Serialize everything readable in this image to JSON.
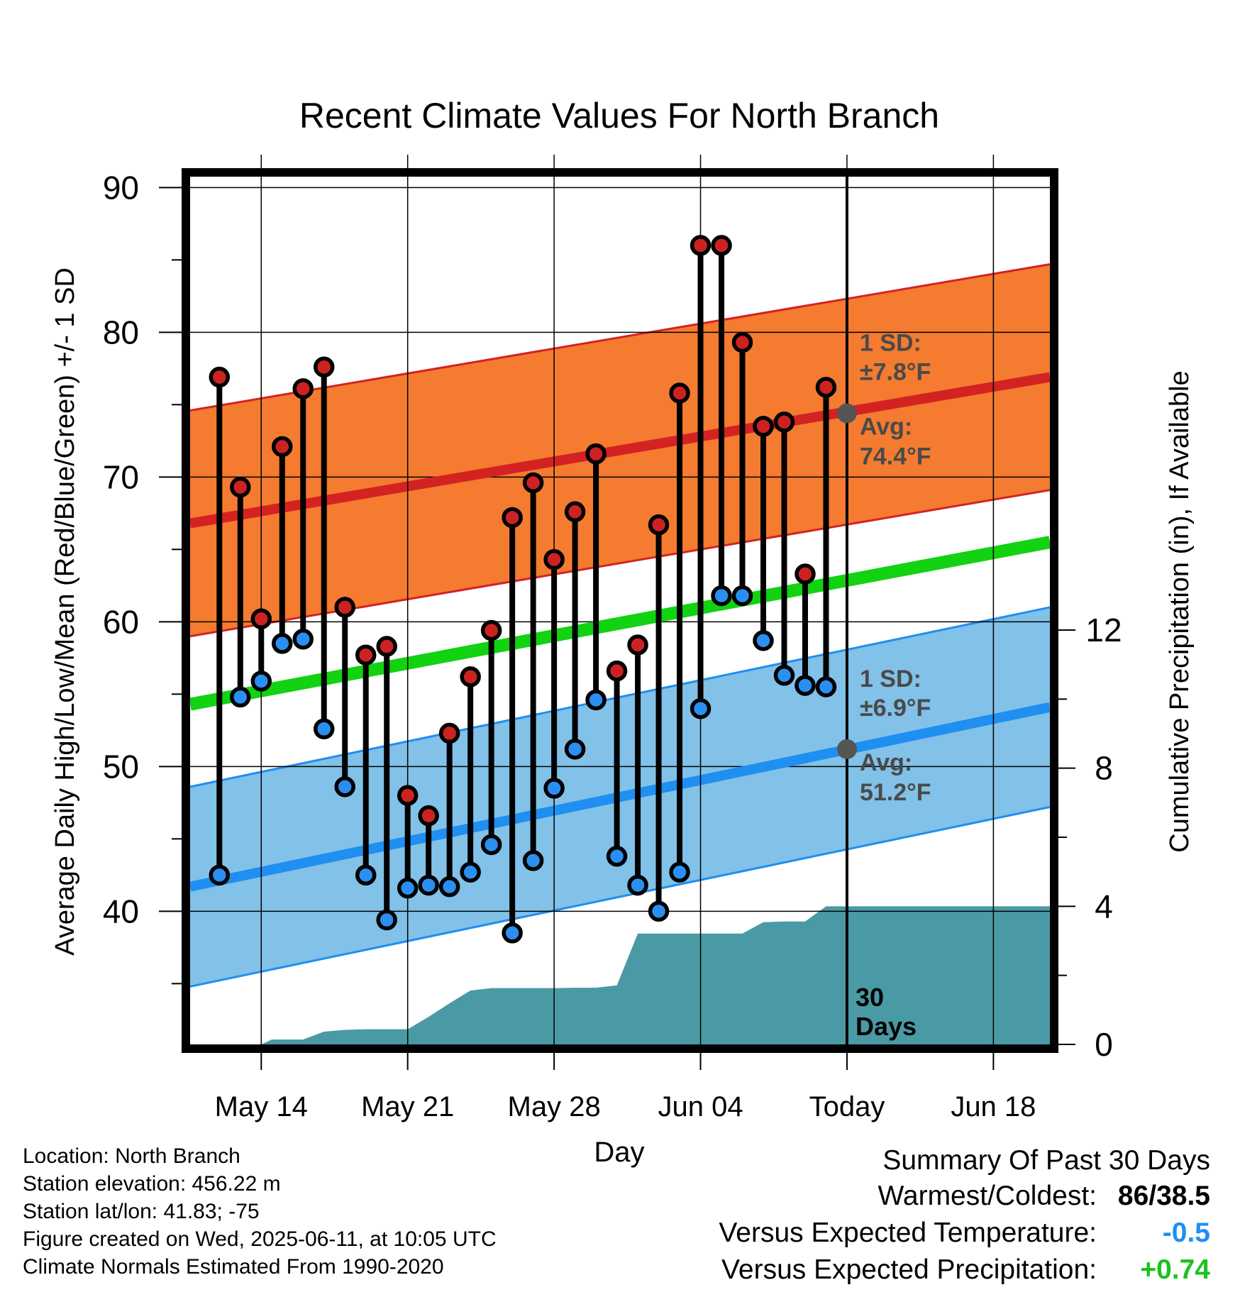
{
  "chart_data": {
    "type": "line",
    "title": "Recent Climate Values For North Branch",
    "xlabel": "Day",
    "ylabel_left": "Average Daily High/Low/Mean (Red/Blue/Green) +/- 1 SD",
    "ylabel_right": "Cumulative Precipitation (in), If Available",
    "x_tick_labels": [
      "May 14",
      "May 21",
      "May 28",
      "Jun 04",
      "Today",
      "Jun 18"
    ],
    "x_tick_days": [
      14,
      21,
      28,
      35,
      42,
      49
    ],
    "x_range_days": [
      10.6,
      51.7
    ],
    "ylim": [
      30.8,
      90.8
    ],
    "y_ticks": [
      40,
      50,
      60,
      70,
      80,
      90
    ],
    "y2lim": [
      0,
      12
    ],
    "y2_ticks": [
      0,
      4,
      8,
      12
    ],
    "grid": true,
    "today_day": 42,
    "today_label_line1": "30",
    "today_label_line2": "Days",
    "normal_high": {
      "start": 66.8,
      "end": 76.9,
      "sd": 7.8
    },
    "normal_low": {
      "start": 41.7,
      "end": 54.1,
      "sd": 6.9
    },
    "normal_mean": {
      "start": 54.3,
      "end": 65.5
    },
    "high_annotation": {
      "sd_label": "1 SD:",
      "sd_value": "±7.8°F",
      "avg_label": "Avg:",
      "avg_value": "74.4°F",
      "avg": 74.4
    },
    "low_annotation": {
      "sd_label": "1 SD:",
      "sd_value": "±6.9°F",
      "avg_label": "Avg:",
      "avg_value": "51.2°F",
      "avg": 51.2
    },
    "colors": {
      "high_band": "#f47b30",
      "high_line": "#d42222",
      "low_band": "#82c1e8",
      "low_line": "#1f8ff1",
      "mean_line": "#12d212",
      "precip": "#4a9aa5",
      "high_marker": "#cc2222",
      "low_marker": "#2a8ff0"
    },
    "series": [
      {
        "name": "High",
        "days": [
          12,
          13,
          14,
          15,
          16,
          17,
          18,
          19,
          20,
          21,
          22,
          23,
          24,
          25,
          26,
          27,
          28,
          29,
          30,
          31,
          32,
          33,
          34,
          35,
          36,
          37,
          38,
          39,
          40,
          41
        ],
        "values": [
          76.9,
          69.3,
          60.2,
          72.1,
          76.1,
          77.6,
          61.0,
          57.7,
          58.3,
          48.0,
          46.6,
          52.3,
          56.2,
          59.4,
          67.2,
          69.6,
          64.3,
          67.6,
          71.6,
          56.6,
          58.4,
          66.7,
          75.8,
          86.0,
          86.0,
          79.3,
          73.5,
          73.8,
          63.3,
          76.2
        ]
      },
      {
        "name": "Low",
        "days": [
          12,
          13,
          14,
          15,
          16,
          17,
          18,
          19,
          20,
          21,
          22,
          23,
          24,
          25,
          26,
          27,
          28,
          29,
          30,
          31,
          32,
          33,
          34,
          35,
          36,
          37,
          38,
          39,
          40,
          41
        ],
        "values": [
          42.5,
          54.8,
          55.9,
          58.5,
          58.8,
          52.6,
          48.6,
          42.5,
          39.4,
          41.6,
          41.8,
          41.7,
          42.7,
          44.6,
          38.5,
          43.5,
          48.5,
          51.2,
          54.6,
          43.8,
          41.8,
          40.0,
          42.7,
          54.0,
          61.8,
          61.8,
          58.7,
          56.3,
          55.6,
          55.5
        ]
      },
      {
        "name": "Precipitation",
        "days": [
          10.6,
          14,
          14.5,
          16,
          17,
          18,
          19,
          20,
          21,
          22,
          23,
          24,
          25,
          26,
          27,
          28,
          29,
          30,
          31,
          32,
          33,
          34,
          35,
          36,
          37,
          38,
          39,
          40,
          41,
          42,
          51.7
        ],
        "values": [
          0,
          0,
          0.14,
          0.14,
          0.37,
          0.42,
          0.44,
          0.44,
          0.44,
          0.8,
          1.19,
          1.56,
          1.63,
          1.63,
          1.63,
          1.63,
          1.64,
          1.64,
          1.71,
          3.21,
          3.21,
          3.21,
          3.21,
          3.21,
          3.21,
          3.54,
          3.56,
          3.56,
          4.0,
          4.0,
          4.0
        ]
      }
    ]
  },
  "info": {
    "location": "Location: North Branch",
    "elevation": "Station elevation: 456.22 m",
    "latlon": "Station lat/lon: 41.83; -75",
    "created": "Figure created on Wed, 2025-06-11, at 10:05 UTC",
    "normals": "Climate Normals Estimated From 1990-2020"
  },
  "summary": {
    "title": "Summary Of Past 30 Days",
    "warmest_label": "Warmest/Coldest:",
    "warmest_value": "86/38.5",
    "temp_label": "Versus Expected Temperature:",
    "temp_value": "-0.5",
    "precip_label": "Versus Expected Precipitation:",
    "precip_value": "+0.74"
  }
}
